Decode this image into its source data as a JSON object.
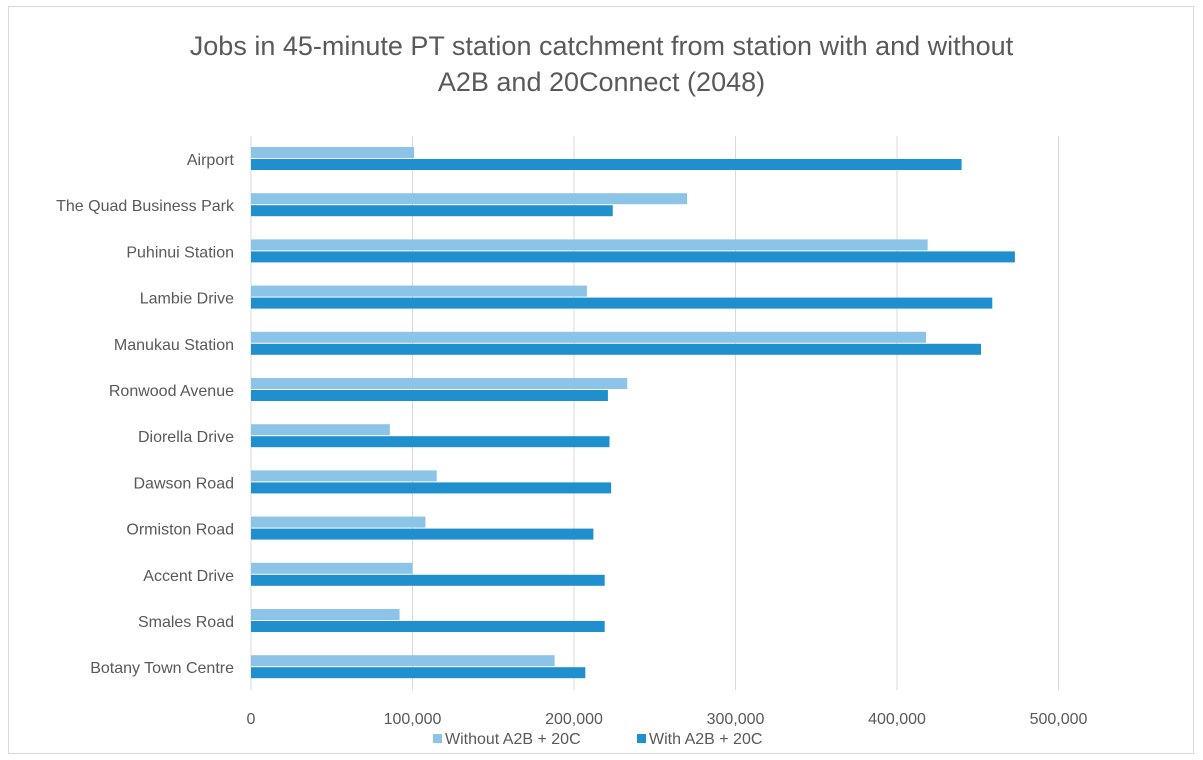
{
  "chart_data": {
    "type": "bar",
    "orientation": "horizontal",
    "title": "Jobs in 45-minute PT station catchment from station with and without A2B and 20Connect (2048)",
    "title_lines": [
      "Jobs in 45-minute PT station catchment from station with and without",
      "A2B and 20Connect (2048)"
    ],
    "xlabel": "",
    "ylabel": "",
    "categories": [
      "Airport",
      "The Quad Business Park",
      "Puhinui Station",
      "Lambie Drive",
      "Manukau Station",
      "Ronwood Avenue",
      "Diorella Drive",
      "Dawson Road",
      "Ormiston Road",
      "Accent Drive",
      "Smales Road",
      "Botany Town Centre"
    ],
    "series": [
      {
        "name": "Without A2B + 20C",
        "color": "#8cc4e8",
        "values": [
          101000,
          270000,
          419000,
          208000,
          418000,
          233000,
          86000,
          115000,
          108000,
          100000,
          92000,
          188000
        ]
      },
      {
        "name": "With A2B + 20C",
        "color": "#1f8fce",
        "values": [
          440000,
          224000,
          473000,
          459000,
          452000,
          221000,
          222000,
          223000,
          212000,
          219000,
          219000,
          207000
        ]
      }
    ],
    "xlim": [
      0,
      500000
    ],
    "xticks": [
      0,
      100000,
      200000,
      300000,
      400000,
      500000
    ],
    "xtick_labels": [
      "0",
      "100,000",
      "200,000",
      "300,000",
      "400,000",
      "500,000"
    ],
    "grid": "vertical",
    "gridline_color": "#d9d9d9",
    "legend_position": "bottom"
  }
}
